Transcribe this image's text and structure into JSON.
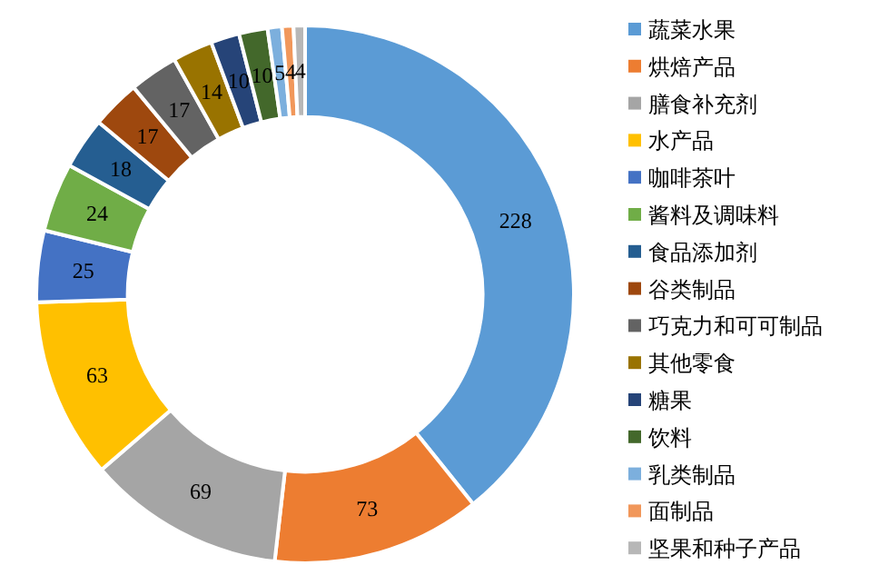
{
  "chart_data": {
    "type": "donut",
    "legend": "right",
    "data_labels": true,
    "categories": [
      "蔬菜水果",
      "烘焙产品",
      "膳食补充剂",
      "水产品",
      "咖啡茶叶",
      "酱料及调味料",
      "食品添加剂",
      "谷类制品",
      "巧克力和可可制品",
      "其他零食",
      "糖果",
      "饮料",
      "乳类制品",
      "面制品",
      "坚果和种子产品"
    ],
    "values": [
      228,
      73,
      69,
      63,
      25,
      24,
      18,
      17,
      17,
      14,
      10,
      10,
      5,
      4,
      4
    ],
    "colors": [
      "#5b9bd5",
      "#ed7d31",
      "#a5a5a5",
      "#ffc000",
      "#4472c4",
      "#70ad47",
      "#255e91",
      "#9e480e",
      "#636363",
      "#997300",
      "#264478",
      "#43682b",
      "#7cafdd",
      "#f1975a",
      "#b7b7b7"
    ]
  }
}
